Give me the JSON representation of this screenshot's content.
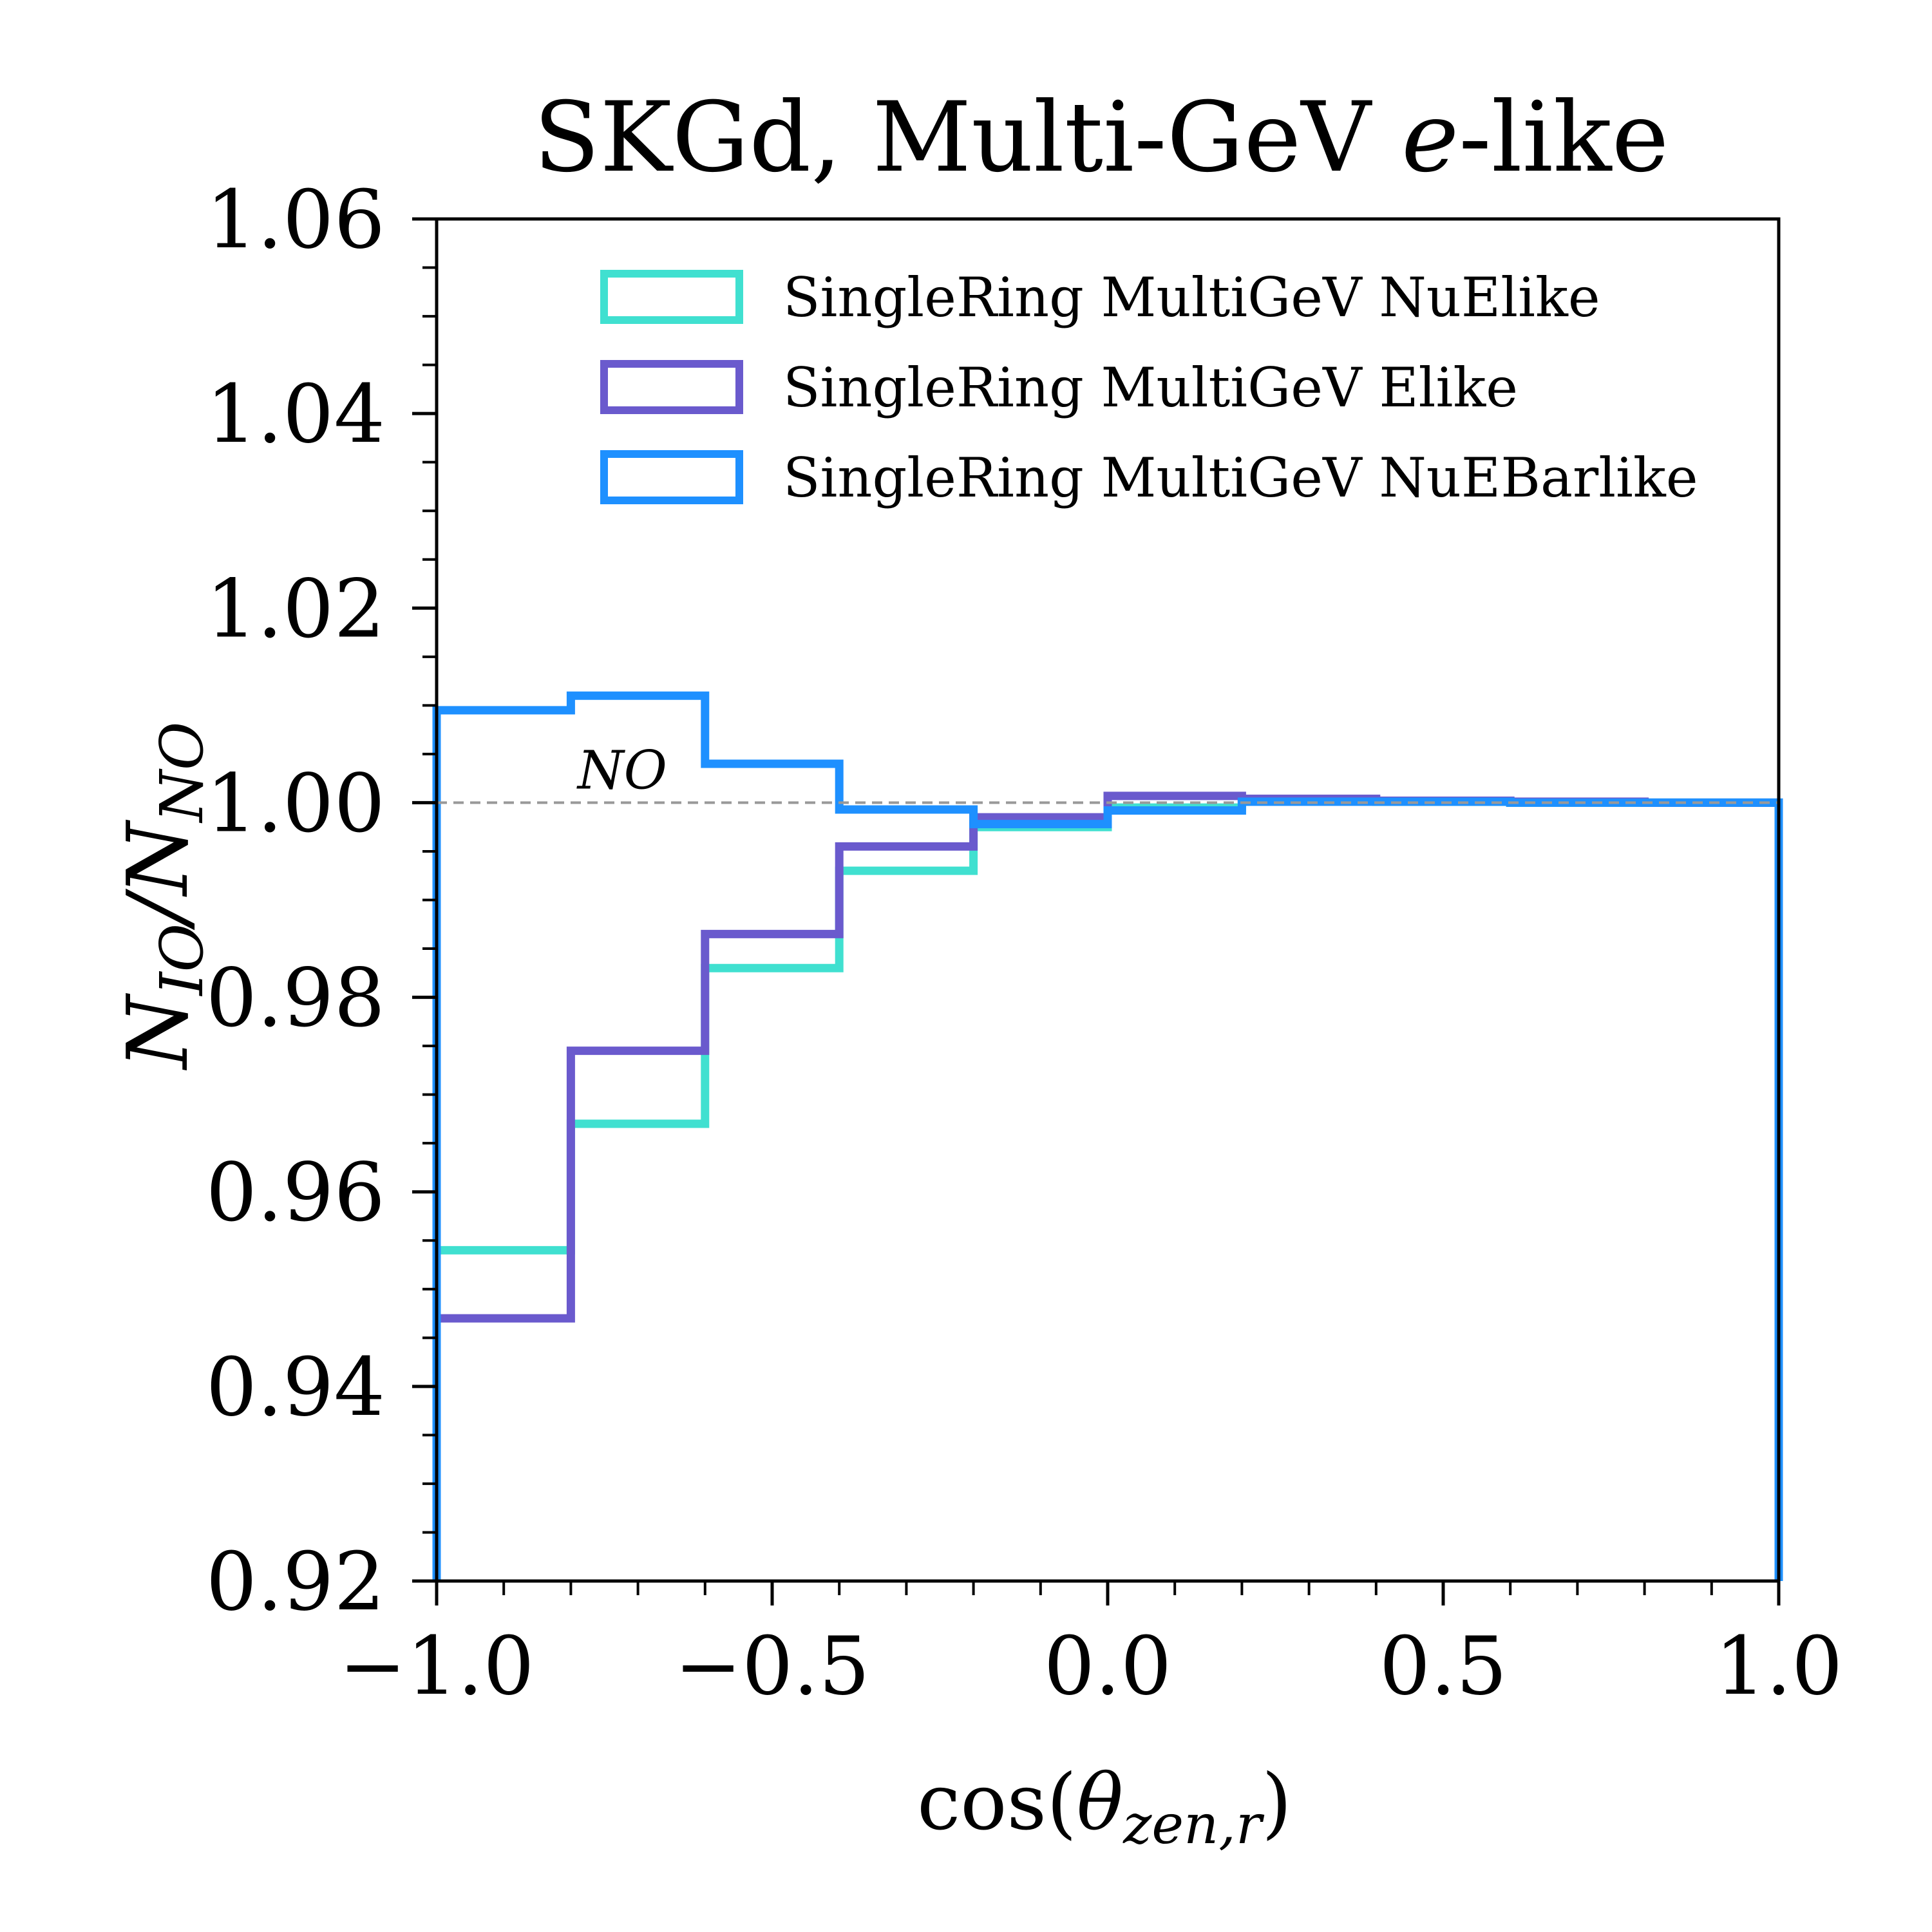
{
  "chart_data": {
    "type": "step",
    "title_parts": [
      "SKGd, Multi-GeV ",
      "e",
      "-like"
    ],
    "xlabel_parts": [
      "cos(",
      "θ",
      "zen,r",
      ")"
    ],
    "ylabel_parts": [
      "N",
      "IO",
      "/N",
      "NO"
    ],
    "xlim": [
      -1.0,
      1.0
    ],
    "ylim": [
      0.92,
      1.06
    ],
    "xticks": [
      -1.0,
      -0.5,
      0.0,
      0.5,
      1.0
    ],
    "xtick_labels": [
      "−1.0",
      "−0.5",
      "0.0",
      "0.5",
      "1.0"
    ],
    "yticks": [
      0.92,
      0.94,
      0.96,
      0.98,
      1.0,
      1.02,
      1.04,
      1.06
    ],
    "ytick_labels": [
      "0.92",
      "0.94",
      "0.96",
      "0.98",
      "1.00",
      "1.02",
      "1.04",
      "1.06"
    ],
    "bin_edges": [
      -1.0,
      -0.8,
      -0.6,
      -0.4,
      -0.2,
      0.0,
      0.2,
      0.4,
      0.6,
      0.8,
      1.0
    ],
    "reference_line": {
      "y": 1.0,
      "label": "NO",
      "color": "#999999"
    },
    "legend_position": "upper-right",
    "series": [
      {
        "name": "SingleRing MultiGeV NuElike",
        "color": "#40E0D0",
        "values": [
          0.954,
          0.967,
          0.983,
          0.993,
          0.9975,
          0.9995,
          1.0002,
          1.0001,
          1.0,
          1.0
        ]
      },
      {
        "name": "SingleRing MultiGeV Elike",
        "color": "#6A5ACD",
        "values": [
          0.947,
          0.9745,
          0.9865,
          0.9955,
          0.9985,
          1.0007,
          1.0004,
          1.0002,
          1.0001,
          1.0
        ]
      },
      {
        "name": "SingleRing MultiGeV NuEBarlike",
        "color": "#1E90FF",
        "values": [
          1.0095,
          1.011,
          1.004,
          0.9993,
          0.9978,
          0.9992,
          1.0001,
          1.0001,
          1.0,
          1.0
        ]
      }
    ]
  }
}
